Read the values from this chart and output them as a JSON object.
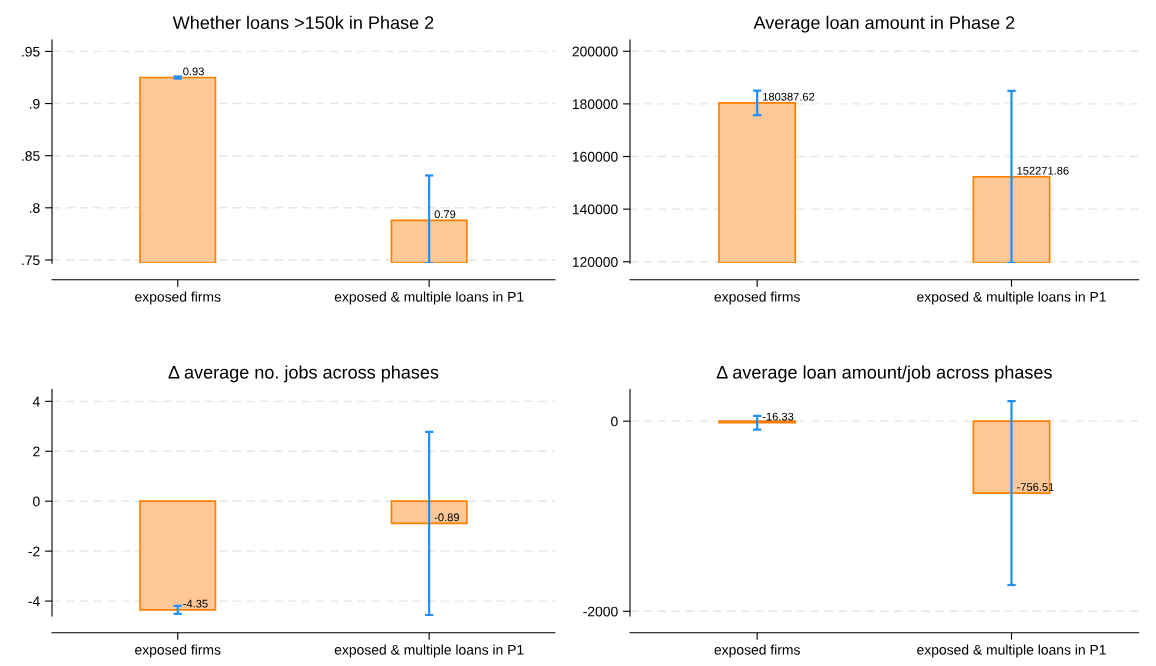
{
  "chart_data": [
    {
      "type": "bar",
      "title": "Whether loans >150k in Phase 2",
      "categories": [
        "exposed firms",
        "exposed & multiple loans in P1"
      ],
      "values": [
        0.925,
        0.788
      ],
      "value_labels": [
        "0.93",
        "0.79"
      ],
      "errors": [
        0.001,
        [
          0.747,
          0.831
        ]
      ],
      "color": "#fdc896",
      "ylim": [
        0.747,
        0.961
      ],
      "yticks": [
        {
          "value": 0.75,
          "label": ".75"
        },
        {
          "value": 0.8,
          "label": ".8"
        },
        {
          "value": 0.85,
          "label": ".85"
        },
        {
          "value": 0.9,
          "label": ".9"
        },
        {
          "value": 0.95,
          "label": ".95"
        }
      ],
      "grid": "y"
    },
    {
      "type": "bar",
      "title": "Average loan amount in Phase 2",
      "categories": [
        "exposed firms",
        "exposed & multiple loans in P1"
      ],
      "values": [
        180387.62,
        152271.86
      ],
      "data_labels": true,
      "errors": [
        4630,
        32700
      ],
      "color": "#fdc896",
      "ylim": [
        119500,
        204300
      ],
      "yticks": [
        120000,
        140000,
        160000,
        180000,
        200000
      ],
      "grid": "y"
    },
    {
      "type": "bar",
      "title": "Δ average no. jobs across phases",
      "categories": [
        "exposed firms",
        "exposed & multiple loans in P1"
      ],
      "values": [
        -4.35,
        -0.89
      ],
      "data_labels": true,
      "errors": [
        0.16,
        3.67
      ],
      "color": "#fdc896",
      "ylim": [
        -4.6,
        4.47
      ],
      "yticks": [
        -4,
        -2,
        0,
        2,
        4
      ],
      "grid": "y"
    },
    {
      "type": "bar",
      "title": "Δ average loan amount/job across phases",
      "categories": [
        "exposed firms",
        "exposed & multiple loans in P1"
      ],
      "values": [
        -16.33,
        -756.51
      ],
      "data_labels": true,
      "errors": [
        72,
        967
      ],
      "color": "#fdc896",
      "ylim": [
        -2050,
        332
      ],
      "yticks": [
        -2000,
        0
      ],
      "grid": "y"
    }
  ]
}
